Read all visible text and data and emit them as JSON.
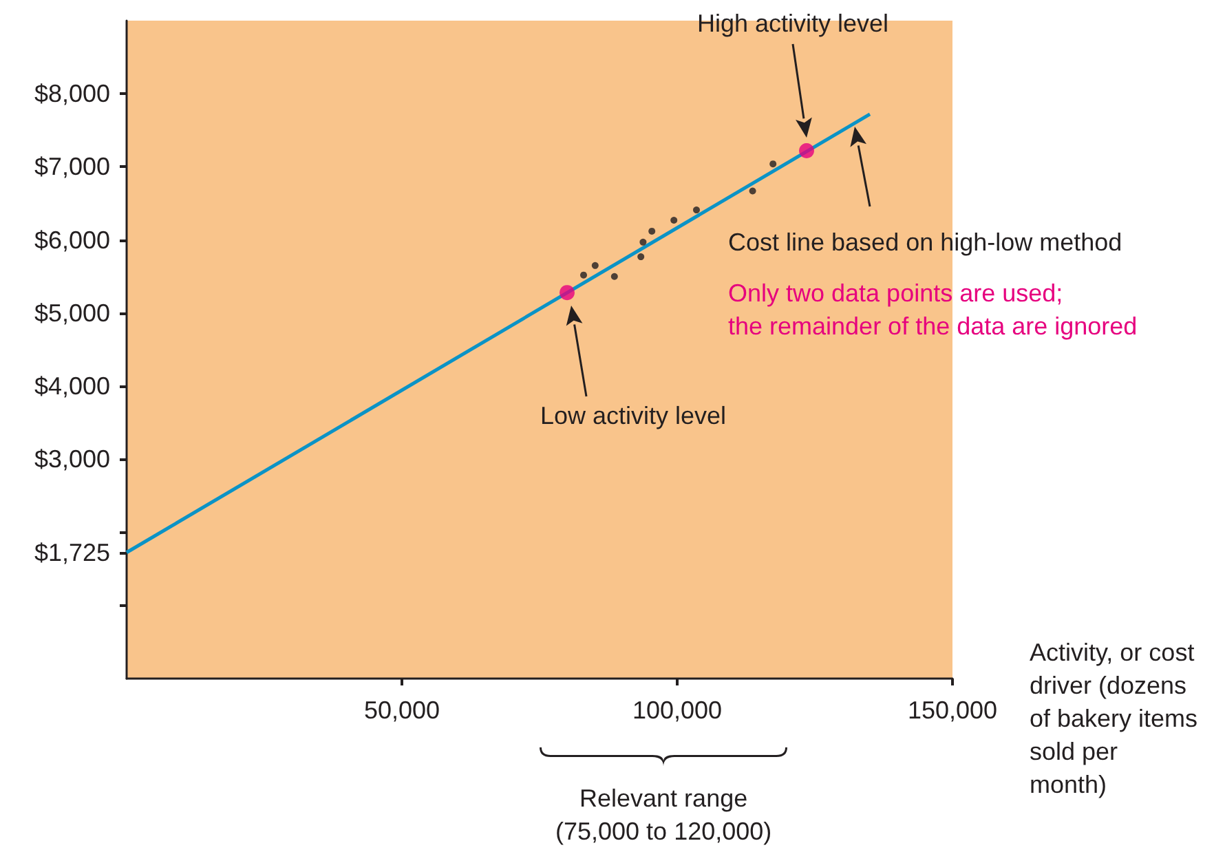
{
  "chart_data": {
    "type": "scatter",
    "xlabel": "Activity, or cost driver (dozens of bakery items sold per month)",
    "xlim": [
      0,
      150000
    ],
    "ylim": [
      0,
      9000
    ],
    "xticks": [
      {
        "value": 50000,
        "label": "50,000"
      },
      {
        "value": 100000,
        "label": "100,000"
      },
      {
        "value": 150000,
        "label": "150,000"
      }
    ],
    "yticks": [
      {
        "value": 1000,
        "label": null
      },
      {
        "value": 1725,
        "label": "$1,725"
      },
      {
        "value": 2000,
        "label": null
      },
      {
        "value": 3000,
        "label": "$3,000"
      },
      {
        "value": 4000,
        "label": "$4,000"
      },
      {
        "value": 5000,
        "label": "$5,000"
      },
      {
        "value": 6000,
        "label": "$6,000"
      },
      {
        "value": 7000,
        "label": "$7,000"
      },
      {
        "value": 8000,
        "label": "$8,000"
      }
    ],
    "grid": false,
    "marker": "circle",
    "series": [
      {
        "type": "line",
        "color": "#0b93c6",
        "x": [
          0,
          135000
        ],
        "values": [
          1725,
          7720
        ],
        "marker": "none"
      },
      {
        "color": "#231f20",
        "x": [
          83000,
          85100,
          88600,
          93400,
          93800,
          95400,
          99400,
          103500,
          113700,
          117400
        ],
        "values": [
          5520,
          5650,
          5500,
          5770,
          5970,
          6120,
          6270,
          6410,
          6670,
          7040
        ]
      },
      {
        "color": "#e6007e",
        "x": [
          80000,
          123500
        ],
        "values": [
          5280,
          7220
        ]
      }
    ],
    "annotations": [
      "High activity level",
      "Cost line based on high-low method",
      "Only two data points are used;\nthe remainder of the data are ignored",
      "Low activity level",
      "Relevant range\n(75,000 to 120,000)"
    ]
  }
}
